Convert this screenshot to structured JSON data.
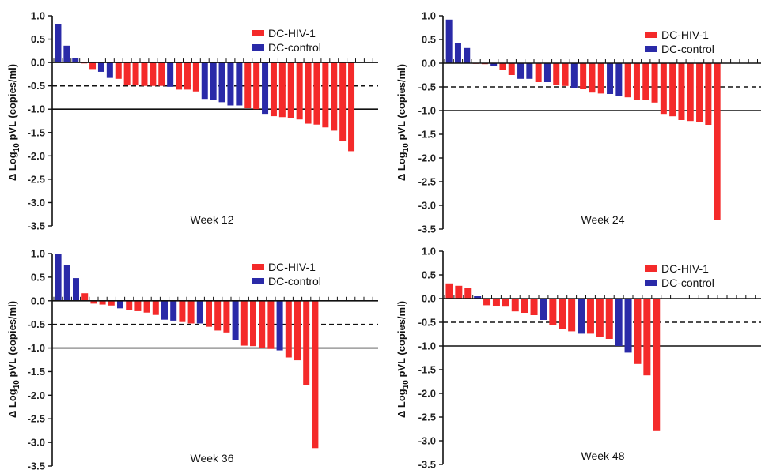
{
  "colors": {
    "hiv": "#f42a2a",
    "control": "#2a2aa8",
    "axis": "#111111"
  },
  "chart_data": [
    {
      "type": "bar",
      "title": "Week 12",
      "ylabel_prefix": "Δ Log",
      "ylabel_sub": "10",
      "ylabel_suffix": " pVL (copies/ml)",
      "ylim": [
        -3.5,
        1.0
      ],
      "yticks": [
        "1.0",
        "0.5",
        "0.0",
        "-0.5",
        "-1.0",
        "-1.5",
        "-2.0",
        "-2.5",
        "-3.0",
        "-3.5"
      ],
      "reference_lines": [
        {
          "y": -0.5,
          "style": "dashed"
        },
        {
          "y": -1.0,
          "style": "solid"
        }
      ],
      "legend": [
        {
          "label": "DC-HIV-1",
          "group": "hiv"
        },
        {
          "label": "DC-control",
          "group": "control"
        }
      ],
      "values": [
        0.82,
        0.36,
        0.09,
        -0.02,
        -0.14,
        -0.2,
        -0.33,
        -0.35,
        -0.49,
        -0.49,
        -0.5,
        -0.5,
        -0.5,
        -0.52,
        -0.58,
        -0.58,
        -0.62,
        -0.78,
        -0.8,
        -0.85,
        -0.92,
        -0.92,
        -0.98,
        -1.0,
        -1.1,
        -1.15,
        -1.17,
        -1.19,
        -1.22,
        -1.31,
        -1.33,
        -1.39,
        -1.46,
        -1.69,
        -1.9
      ],
      "groups": [
        "control",
        "control",
        "control",
        "hiv",
        "hiv",
        "control",
        "control",
        "hiv",
        "hiv",
        "hiv",
        "hiv",
        "hiv",
        "hiv",
        "control",
        "hiv",
        "hiv",
        "hiv",
        "control",
        "control",
        "control",
        "control",
        "control",
        "hiv",
        "hiv",
        "control",
        "hiv",
        "hiv",
        "hiv",
        "hiv",
        "hiv",
        "hiv",
        "hiv",
        "hiv",
        "hiv",
        "hiv"
      ]
    },
    {
      "type": "bar",
      "title": "Week 24",
      "ylabel_prefix": "Δ Log",
      "ylabel_sub": "10",
      "ylabel_suffix": " pVL (copies/ml)",
      "ylim": [
        -3.5,
        1.0
      ],
      "yticks": [
        "1.0",
        "0.5",
        "0.0",
        "-0.5",
        "-1.0",
        "-1.5",
        "-2.0",
        "-2.5",
        "-3.0",
        "-3.5"
      ],
      "reference_lines": [
        {
          "y": -0.5,
          "style": "dashed"
        },
        {
          "y": -1.0,
          "style": "solid"
        }
      ],
      "legend": [
        {
          "label": "DC-HIV-1",
          "group": "hiv"
        },
        {
          "label": "DC-control",
          "group": "control"
        }
      ],
      "values": [
        0.92,
        0.43,
        0.32,
        0.0,
        -0.02,
        -0.06,
        -0.15,
        -0.25,
        -0.33,
        -0.33,
        -0.4,
        -0.4,
        -0.45,
        -0.48,
        -0.52,
        -0.55,
        -0.62,
        -0.64,
        -0.65,
        -0.69,
        -0.72,
        -0.77,
        -0.77,
        -0.83,
        -1.07,
        -1.12,
        -1.2,
        -1.22,
        -1.25,
        -1.3,
        -3.31
      ],
      "groups": [
        "control",
        "control",
        "control",
        "hiv",
        "hiv",
        "control",
        "hiv",
        "hiv",
        "control",
        "control",
        "hiv",
        "control",
        "hiv",
        "hiv",
        "control",
        "hiv",
        "hiv",
        "hiv",
        "control",
        "control",
        "hiv",
        "hiv",
        "hiv",
        "hiv",
        "hiv",
        "hiv",
        "hiv",
        "hiv",
        "hiv",
        "hiv",
        "hiv"
      ]
    },
    {
      "type": "bar",
      "title": "Week 36",
      "ylabel_prefix": "Δ Log",
      "ylabel_sub": "10",
      "ylabel_suffix": " pVL (copies/ml)",
      "ylim": [
        -3.5,
        1.0
      ],
      "yticks": [
        "1.0",
        "0.5",
        "0.0",
        "-0.5",
        "-1.0",
        "-1.5",
        "-2.0",
        "-2.5",
        "-3.0",
        "-3.5"
      ],
      "reference_lines": [
        {
          "y": -0.5,
          "style": "dashed"
        },
        {
          "y": -1.0,
          "style": "solid"
        }
      ],
      "legend": [
        {
          "label": "DC-HIV-1",
          "group": "hiv"
        },
        {
          "label": "DC-control",
          "group": "control"
        }
      ],
      "values": [
        1.0,
        0.75,
        0.48,
        0.16,
        -0.06,
        -0.08,
        -0.1,
        -0.16,
        -0.2,
        -0.22,
        -0.25,
        -0.3,
        -0.4,
        -0.42,
        -0.45,
        -0.48,
        -0.48,
        -0.55,
        -0.63,
        -0.67,
        -0.83,
        -0.95,
        -0.96,
        -1.0,
        -1.02,
        -1.05,
        -1.2,
        -1.26,
        -1.79,
        -3.12
      ],
      "groups": [
        "control",
        "control",
        "control",
        "hiv",
        "hiv",
        "hiv",
        "hiv",
        "control",
        "hiv",
        "hiv",
        "hiv",
        "hiv",
        "control",
        "control",
        "hiv",
        "hiv",
        "control",
        "hiv",
        "hiv",
        "hiv",
        "control",
        "hiv",
        "hiv",
        "hiv",
        "hiv",
        "control",
        "hiv",
        "hiv",
        "hiv",
        "hiv"
      ]
    },
    {
      "type": "bar",
      "title": "Week 48",
      "ylabel_prefix": "Δ Log",
      "ylabel_sub": "10",
      "ylabel_suffix": " pVL (copies/ml)",
      "ylim": [
        -3.5,
        1.0
      ],
      "yticks": [
        "1.0",
        "0.5",
        "0.0",
        "-0.5",
        "-1.0",
        "-1.5",
        "-2.0",
        "-2.5",
        "-3.0",
        "-3.5"
      ],
      "reference_lines": [
        {
          "y": -0.5,
          "style": "dashed"
        },
        {
          "y": -1.0,
          "style": "solid"
        }
      ],
      "legend": [
        {
          "label": "DC-HIV-1",
          "group": "hiv"
        },
        {
          "label": "DC-control",
          "group": "control"
        }
      ],
      "values": [
        0.32,
        0.27,
        0.22,
        0.05,
        -0.14,
        -0.16,
        -0.17,
        -0.27,
        -0.3,
        -0.35,
        -0.45,
        -0.55,
        -0.65,
        -0.69,
        -0.74,
        -0.74,
        -0.8,
        -0.85,
        -1.0,
        -1.14,
        -1.38,
        -1.62,
        -2.78
      ],
      "groups": [
        "hiv",
        "hiv",
        "hiv",
        "control",
        "hiv",
        "hiv",
        "hiv",
        "hiv",
        "hiv",
        "hiv",
        "control",
        "hiv",
        "hiv",
        "hiv",
        "control",
        "hiv",
        "hiv",
        "hiv",
        "control",
        "control",
        "hiv",
        "hiv",
        "hiv"
      ]
    }
  ]
}
